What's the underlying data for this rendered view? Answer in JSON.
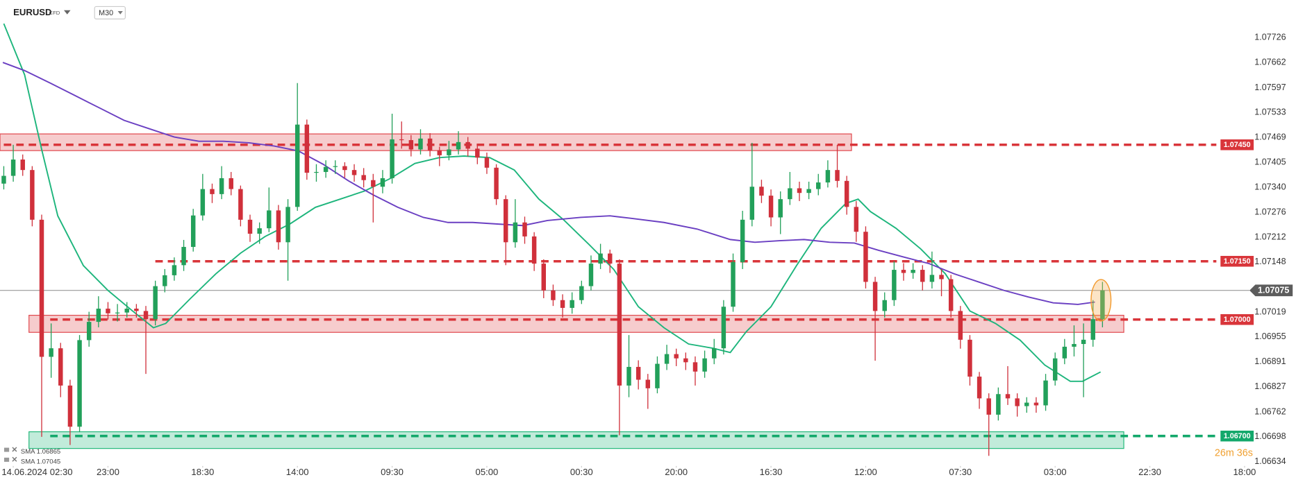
{
  "header": {
    "symbol": "EURUSD",
    "instrument_type": "CFD",
    "timeframe": "M30"
  },
  "chart_data": {
    "type": "candlestick",
    "up_color": "#22a05a",
    "down_color": "#d0303b",
    "x": [
      -1,
      0,
      1,
      2,
      3,
      4,
      5,
      6,
      7,
      8,
      9,
      10,
      11,
      12,
      13,
      14,
      15,
      16,
      17,
      18,
      19,
      20,
      21,
      22,
      23,
      24,
      25,
      26,
      27,
      28,
      29,
      30,
      31,
      32,
      33,
      34,
      35,
      36,
      37,
      38,
      39,
      40,
      41,
      42,
      43,
      44,
      45,
      46,
      47,
      48,
      49,
      50,
      51,
      52,
      53,
      54,
      55,
      56,
      57,
      58,
      59,
      60,
      61,
      62,
      63,
      64,
      65,
      66,
      67,
      68,
      69,
      70,
      71,
      72,
      73,
      74,
      75,
      76,
      77,
      78,
      79,
      80,
      81,
      82,
      83,
      84,
      85,
      86,
      87,
      88,
      89,
      90,
      91,
      92,
      93,
      94,
      95,
      96,
      97,
      98,
      99,
      100,
      101,
      102,
      103,
      104,
      105,
      106,
      107,
      108,
      109,
      110,
      111,
      112,
      113,
      114,
      115
    ],
    "open": [
      1.0735,
      1.0737,
      1.07412,
      1.07385,
      1.07257,
      1.06904,
      1.06926,
      1.0683,
      1.06724,
      1.06947,
      1.06994,
      1.07028,
      1.07016,
      1.07018,
      1.07028,
      1.07022,
      1.07001,
      1.07086,
      1.07114,
      1.0714,
      1.07187,
      1.07268,
      1.07336,
      1.07323,
      1.07364,
      1.07336,
      1.07257,
      1.07221,
      1.07235,
      1.07281,
      1.07199,
      1.0729,
      1.07502,
      1.07378,
      1.0738,
      1.07393,
      1.07395,
      1.07385,
      1.07372,
      1.07359,
      1.07342,
      1.07364,
      1.07464,
      1.07462,
      1.07438,
      1.07466,
      1.07436,
      1.07423,
      1.07438,
      1.07457,
      1.0744,
      1.07417,
      1.07391,
      1.0731,
      1.07199,
      1.0725,
      1.07214,
      1.07144,
      1.07075,
      1.0705,
      1.0703,
      1.0705,
      1.07086,
      1.07144,
      1.0717,
      1.07144,
      1.0683,
      1.06878,
      1.06845,
      1.06823,
      1.06886,
      1.06911,
      1.069,
      1.0689,
      1.06866,
      1.069,
      1.06926,
      1.07033,
      1.07148,
      1.07257,
      1.07342,
      1.07319,
      1.07263,
      1.0731,
      1.07338,
      1.07326,
      1.07336,
      1.07353,
      1.07385,
      1.07357,
      1.0729,
      1.07226,
      1.07097,
      1.07022,
      1.0705,
      1.07128,
      1.0712,
      1.07128,
      1.07097,
      1.07115,
      1.07104,
      1.07022,
      1.06948,
      1.06853,
      1.06797,
      1.06755,
      1.06808,
      1.06797,
      1.06777,
      1.06786,
      1.06779,
      1.06843,
      1.069,
      1.0693,
      1.06937,
      1.06948,
      1.07001
    ],
    "high": [
      1.07395,
      1.0745,
      1.07425,
      1.07395,
      1.0727,
      1.0699,
      1.0694,
      1.06845,
      1.0696,
      1.0702,
      1.0706,
      1.07045,
      1.0704,
      1.07045,
      1.0704,
      1.07035,
      1.071,
      1.0713,
      1.0716,
      1.07205,
      1.07285,
      1.07375,
      1.0735,
      1.07395,
      1.0738,
      1.07345,
      1.0727,
      1.0725,
      1.0734,
      1.07295,
      1.0731,
      1.07609,
      1.07515,
      1.074,
      1.0741,
      1.0741,
      1.07405,
      1.074,
      1.0739,
      1.07375,
      1.07385,
      1.0753,
      1.0751,
      1.07475,
      1.0749,
      1.0748,
      1.07445,
      1.0746,
      1.07485,
      1.0747,
      1.0745,
      1.0743,
      1.074,
      1.0732,
      1.0731,
      1.07265,
      1.07225,
      1.07155,
      1.0709,
      1.07065,
      1.0707,
      1.071,
      1.07165,
      1.07195,
      1.0718,
      1.07155,
      1.0696,
      1.06895,
      1.0686,
      1.06905,
      1.06935,
      1.06925,
      1.06915,
      1.06905,
      1.0692,
      1.0695,
      1.0705,
      1.0717,
      1.0728,
      1.07455,
      1.0736,
      1.07335,
      1.0733,
      1.0738,
      1.07355,
      1.07355,
      1.07375,
      1.0741,
      1.0745,
      1.0737,
      1.07305,
      1.0724,
      1.0711,
      1.0707,
      1.0715,
      1.07145,
      1.07145,
      1.0714,
      1.07175,
      1.0713,
      1.07115,
      1.07035,
      1.0696,
      1.06865,
      1.0681,
      1.06825,
      1.0688,
      1.0681,
      1.068,
      1.068,
      1.0686,
      1.06915,
      1.0695,
      1.06985,
      1.0699,
      1.0705,
      1.07097
    ],
    "low": [
      1.07335,
      1.07355,
      1.0737,
      1.0724,
      1.06698,
      1.0685,
      1.068,
      1.06677,
      1.0671,
      1.0693,
      1.0698,
      1.07,
      1.06995,
      1.07005,
      1.07005,
      1.0686,
      1.06985,
      1.0707,
      1.071,
      1.07125,
      1.07175,
      1.07255,
      1.073,
      1.0731,
      1.0732,
      1.0724,
      1.072,
      1.07195,
      1.07225,
      1.0718,
      1.071,
      1.0728,
      1.0736,
      1.07355,
      1.07365,
      1.07375,
      1.07365,
      1.07355,
      1.0734,
      1.0725,
      1.07325,
      1.0735,
      1.0744,
      1.0742,
      1.07425,
      1.0742,
      1.07395,
      1.0741,
      1.07425,
      1.0742,
      1.074,
      1.07375,
      1.07295,
      1.0714,
      1.07185,
      1.07195,
      1.07125,
      1.07055,
      1.07035,
      1.07005,
      1.07015,
      1.0704,
      1.07075,
      1.0713,
      1.0712,
      1.06702,
      1.068,
      1.0682,
      1.0677,
      1.0681,
      1.0687,
      1.0688,
      1.0687,
      1.0683,
      1.0685,
      1.06885,
      1.0691,
      1.0702,
      1.0713,
      1.0724,
      1.073,
      1.0724,
      1.0722,
      1.07295,
      1.07305,
      1.0731,
      1.0732,
      1.0734,
      1.0734,
      1.0727,
      1.072,
      1.0708,
      1.06894,
      1.07005,
      1.07035,
      1.071,
      1.07105,
      1.07075,
      1.0708,
      1.0706,
      1.07005,
      1.06925,
      1.0683,
      1.0677,
      1.06649,
      1.0674,
      1.0678,
      1.0675,
      1.0676,
      1.0676,
      1.06765,
      1.0683,
      1.06885,
      1.06905,
      1.068,
      1.0693,
      1.0698
    ],
    "close": [
      1.0737,
      1.07412,
      1.07385,
      1.07257,
      1.06904,
      1.06926,
      1.0683,
      1.06724,
      1.06947,
      1.06994,
      1.07028,
      1.07016,
      1.07018,
      1.07028,
      1.07022,
      1.07001,
      1.07086,
      1.07114,
      1.0714,
      1.07187,
      1.07268,
      1.07336,
      1.07323,
      1.07364,
      1.07336,
      1.07257,
      1.07221,
      1.07235,
      1.07281,
      1.07199,
      1.0729,
      1.07502,
      1.07378,
      1.0738,
      1.07393,
      1.07395,
      1.07385,
      1.07372,
      1.07359,
      1.07342,
      1.07364,
      1.07464,
      1.07462,
      1.07438,
      1.07466,
      1.07436,
      1.07423,
      1.07438,
      1.07457,
      1.0744,
      1.07417,
      1.07391,
      1.0731,
      1.07199,
      1.0725,
      1.07214,
      1.07144,
      1.07075,
      1.0705,
      1.0703,
      1.0705,
      1.07086,
      1.07144,
      1.0717,
      1.07144,
      1.0683,
      1.06878,
      1.06845,
      1.06823,
      1.06886,
      1.06911,
      1.069,
      1.0689,
      1.06866,
      1.069,
      1.06926,
      1.07033,
      1.07148,
      1.07257,
      1.07342,
      1.07319,
      1.07263,
      1.0731,
      1.07338,
      1.07326,
      1.07336,
      1.07353,
      1.07385,
      1.07357,
      1.0729,
      1.07226,
      1.07097,
      1.07022,
      1.0705,
      1.07128,
      1.0712,
      1.07128,
      1.07097,
      1.07115,
      1.07104,
      1.07022,
      1.06948,
      1.06853,
      1.06797,
      1.06755,
      1.06808,
      1.06797,
      1.06777,
      1.06786,
      1.06779,
      1.06843,
      1.069,
      1.0693,
      1.06937,
      1.06948,
      1.07001,
      1.07075
    ],
    "xlim": [
      -1.4,
      130
    ],
    "xticks": [
      {
        "value": 0,
        "label": "14.06.2024 02:30"
      },
      {
        "value": 10,
        "label": "23:00"
      },
      {
        "value": 20,
        "label": "18:30"
      },
      {
        "value": 30,
        "label": "14:00"
      },
      {
        "value": 40,
        "label": "09:30"
      },
      {
        "value": 50,
        "label": "05:00"
      },
      {
        "value": 60,
        "label": "00:30"
      },
      {
        "value": 70,
        "label": "20:00"
      },
      {
        "value": 80,
        "label": "16:30"
      },
      {
        "value": 90,
        "label": "12:00"
      },
      {
        "value": 100,
        "label": "07:30"
      },
      {
        "value": 110,
        "label": "03:00"
      },
      {
        "value": 120,
        "label": "22:30"
      },
      {
        "value": 130,
        "label": "18:00"
      }
    ],
    "ylim": [
      1.06623,
      1.07822
    ],
    "yticks": [
      1.07726,
      1.07662,
      1.07597,
      1.07533,
      1.07469,
      1.07405,
      {
        "value": 1.0734,
        "label": "1.07340"
      },
      1.07276,
      1.07212,
      1.07148,
      1.07019,
      1.06955,
      1.06891,
      1.06827,
      1.06762,
      1.06698,
      1.06634
    ],
    "grid": false,
    "indicators": [
      {
        "name": "SMA",
        "label": "SMA 1.06865",
        "color": "#1db57c",
        "x": [
          -1,
          1.2,
          3,
          4.7,
          7.4,
          10,
          12.6,
          14.8,
          16.1,
          18.7,
          21.4,
          24,
          26.6,
          29.2,
          31.9,
          34.5,
          37.1,
          39.8,
          42.4,
          45,
          47.6,
          50.3,
          52.9,
          55.5,
          58.1,
          60.8,
          63.4,
          66,
          68.7,
          71.3,
          73.9,
          75.7,
          77.4,
          80,
          82.7,
          85.3,
          87.9,
          89.2,
          90.5,
          93.2,
          95.8,
          98.4,
          101,
          103.7,
          106.3,
          108.9,
          111.6,
          112.9,
          114.8
        ],
        "values": [
          1.07762,
          1.0763,
          1.07438,
          1.07267,
          1.07139,
          1.07075,
          1.07022,
          1.06979,
          1.0699,
          1.07054,
          1.07118,
          1.07171,
          1.07214,
          1.07246,
          1.07289,
          1.0731,
          1.07331,
          1.07363,
          1.07402,
          1.07417,
          1.07421,
          1.07417,
          1.07385,
          1.0731,
          1.07257,
          1.07193,
          1.07129,
          1.07033,
          1.06979,
          1.06937,
          1.06926,
          1.06915,
          1.06969,
          1.07033,
          1.07139,
          1.07235,
          1.07299,
          1.0731,
          1.07278,
          1.07235,
          1.07182,
          1.07118,
          1.07022,
          1.0699,
          1.06947,
          1.06883,
          1.06841,
          1.06841,
          1.06865
        ]
      },
      {
        "name": "SMA",
        "label": "SMA 1.07045",
        "color": "#6a3fc2",
        "x": [
          -1.1,
          1.2,
          3.9,
          6.5,
          9.1,
          11.7,
          14.4,
          17,
          19.6,
          22.2,
          24.9,
          27.5,
          30.1,
          32.7,
          35.4,
          38,
          40.6,
          43.3,
          45.9,
          48.5,
          51.1,
          53.8,
          56.4,
          59.9,
          63,
          65.1,
          68.7,
          72.2,
          75.7,
          78.3,
          80.9,
          83.5,
          86.2,
          88.8,
          91.4,
          94,
          96.7,
          99.3,
          101.9,
          104.6,
          107.2,
          109.8,
          112.4,
          114.2
        ],
        "values": [
          1.07662,
          1.07641,
          1.07609,
          1.07577,
          1.07545,
          1.07513,
          1.07491,
          1.0747,
          1.07459,
          1.07459,
          1.07455,
          1.07447,
          1.07434,
          1.074,
          1.07357,
          1.07321,
          1.07289,
          1.07263,
          1.0725,
          1.0725,
          1.07246,
          1.07242,
          1.07255,
          1.07263,
          1.07267,
          1.07261,
          1.0725,
          1.07233,
          1.07206,
          1.07199,
          1.07203,
          1.07206,
          1.07199,
          1.07197,
          1.07178,
          1.07161,
          1.07144,
          1.07118,
          1.07097,
          1.07075,
          1.07058,
          1.07043,
          1.07039,
          1.07045
        ]
      }
    ],
    "levels": [
      {
        "value": 1.0745,
        "label": "1.07450",
        "color": "#d9353a",
        "start": -1
      },
      {
        "value": 1.0715,
        "label": "1.07150",
        "color": "#d9353a",
        "start": 15
      },
      {
        "value": 1.07,
        "label": "1.07000",
        "color": "#d9353a",
        "start": 3.9
      },
      {
        "value": 1.067,
        "label": "1.06700",
        "color": "#13a86b",
        "start": 3.9
      }
    ],
    "zones": [
      {
        "low": 1.07435,
        "high": 1.07478,
        "x": [
          -1.4,
          88.5
        ],
        "color": "#e0474c"
      },
      {
        "low": 1.06967,
        "high": 1.07011,
        "x": [
          1.66,
          117.25
        ],
        "color": "#e0474c"
      },
      {
        "low": 1.06668,
        "high": 1.06711,
        "x": [
          1.66,
          117.25
        ],
        "color": "#22b87a"
      }
    ],
    "current_price": {
      "value": 1.07075,
      "label": "1.07075"
    },
    "countdown": "26m 36s"
  }
}
